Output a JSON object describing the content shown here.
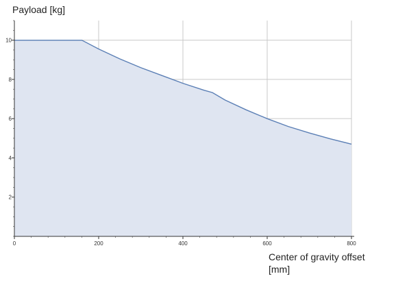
{
  "chart_data": {
    "type": "area",
    "ylabel": "Payload [kg]",
    "xlabel_line1": "Center of gravity offset",
    "xlabel_line2": "[mm]",
    "xlim": [
      0,
      800
    ],
    "ylim": [
      0,
      11
    ],
    "x_ticks": [
      0,
      200,
      400,
      600,
      800
    ],
    "y_ticks": [
      2,
      4,
      6,
      8,
      10
    ],
    "grid": true,
    "fill_color": "#dfe5f1",
    "line_color": "#5b7fb5",
    "series": [
      {
        "x": [
          0,
          160,
          200,
          250,
          300,
          350,
          400,
          450,
          470,
          500,
          550,
          600,
          650,
          700,
          750,
          800
        ],
        "values": [
          10,
          10,
          9.55,
          9.05,
          8.6,
          8.2,
          7.8,
          7.45,
          7.33,
          6.95,
          6.45,
          6.0,
          5.6,
          5.27,
          4.97,
          4.7
        ]
      }
    ]
  }
}
